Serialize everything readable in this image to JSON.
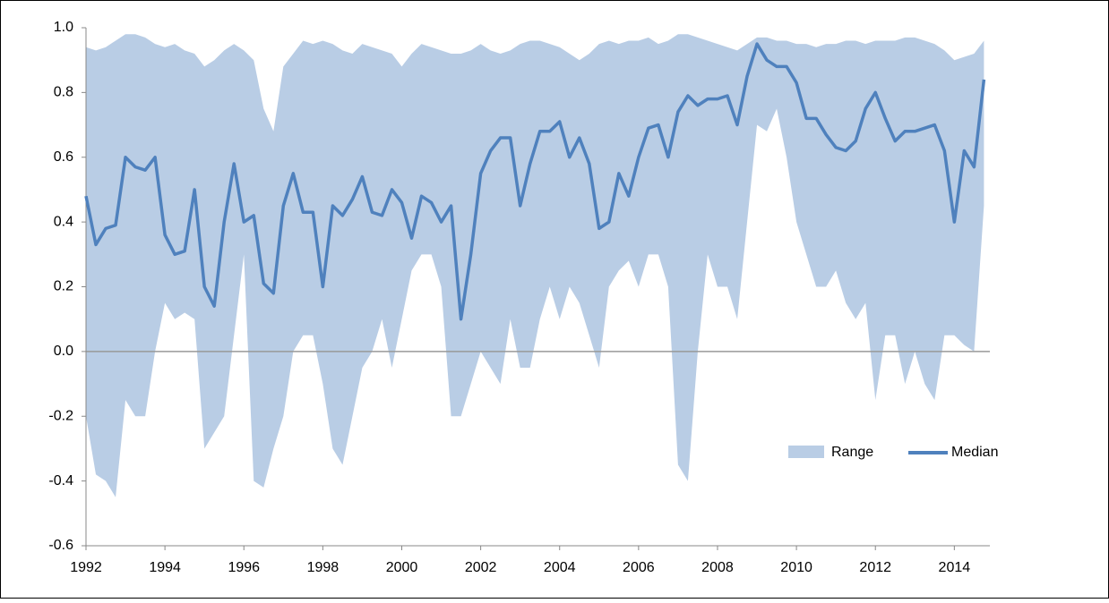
{
  "chart_data": {
    "type": "range-line",
    "x": [
      1992,
      1992.25,
      1992.5,
      1992.75,
      1993,
      1993.25,
      1993.5,
      1993.75,
      1994,
      1994.25,
      1994.5,
      1994.75,
      1995,
      1995.25,
      1995.5,
      1995.75,
      1996,
      1996.25,
      1996.5,
      1996.75,
      1997,
      1997.25,
      1997.5,
      1997.75,
      1998,
      1998.25,
      1998.5,
      1998.75,
      1999,
      1999.25,
      1999.5,
      1999.75,
      2000,
      2000.25,
      2000.5,
      2000.75,
      2001,
      2001.25,
      2001.5,
      2001.75,
      2002,
      2002.25,
      2002.5,
      2002.75,
      2003,
      2003.25,
      2003.5,
      2003.75,
      2004,
      2004.25,
      2004.5,
      2004.75,
      2005,
      2005.25,
      2005.5,
      2005.75,
      2006,
      2006.25,
      2006.5,
      2006.75,
      2007,
      2007.25,
      2007.5,
      2007.75,
      2008,
      2008.25,
      2008.5,
      2008.75,
      2009,
      2009.25,
      2009.5,
      2009.75,
      2010,
      2010.25,
      2010.5,
      2010.75,
      2011,
      2011.25,
      2011.5,
      2011.75,
      2012,
      2012.25,
      2012.5,
      2012.75,
      2013,
      2013.25,
      2013.5,
      2013.75,
      2014,
      2014.25,
      2014.5,
      2014.75
    ],
    "series": [
      {
        "name": "Range",
        "color": "#b9cde5",
        "high": [
          0.94,
          0.93,
          0.94,
          0.96,
          0.98,
          0.98,
          0.97,
          0.95,
          0.94,
          0.95,
          0.93,
          0.92,
          0.88,
          0.9,
          0.93,
          0.95,
          0.93,
          0.9,
          0.75,
          0.68,
          0.88,
          0.92,
          0.96,
          0.95,
          0.96,
          0.95,
          0.93,
          0.92,
          0.95,
          0.94,
          0.93,
          0.92,
          0.88,
          0.92,
          0.95,
          0.94,
          0.93,
          0.92,
          0.92,
          0.93,
          0.95,
          0.93,
          0.92,
          0.93,
          0.95,
          0.96,
          0.96,
          0.95,
          0.94,
          0.92,
          0.9,
          0.92,
          0.95,
          0.96,
          0.95,
          0.96,
          0.96,
          0.97,
          0.95,
          0.96,
          0.98,
          0.98,
          0.97,
          0.96,
          0.95,
          0.94,
          0.93,
          0.95,
          0.97,
          0.97,
          0.96,
          0.96,
          0.95,
          0.95,
          0.94,
          0.95,
          0.95,
          0.96,
          0.96,
          0.95,
          0.96,
          0.96,
          0.96,
          0.97,
          0.97,
          0.96,
          0.95,
          0.93,
          0.9,
          0.91,
          0.92,
          0.96
        ],
        "low": [
          -0.2,
          -0.38,
          -0.4,
          -0.45,
          -0.15,
          -0.2,
          -0.2,
          0,
          0.15,
          0.1,
          0.12,
          0.1,
          -0.3,
          -0.25,
          -0.2,
          0.05,
          0.3,
          -0.4,
          -0.42,
          -0.3,
          -0.2,
          0,
          0.05,
          0.05,
          -0.1,
          -0.3,
          -0.35,
          -0.2,
          -0.05,
          0,
          0.1,
          -0.05,
          0.1,
          0.25,
          0.3,
          0.3,
          0.2,
          -0.2,
          -0.2,
          -0.1,
          0,
          -0.05,
          -0.1,
          0.1,
          -0.05,
          -0.05,
          0.1,
          0.2,
          0.1,
          0.2,
          0.15,
          0.05,
          -0.05,
          0.2,
          0.25,
          0.28,
          0.2,
          0.3,
          0.3,
          0.2,
          -0.35,
          -0.4,
          0,
          0.3,
          0.2,
          0.2,
          0.1,
          0.4,
          0.7,
          0.68,
          0.75,
          0.6,
          0.4,
          0.3,
          0.2,
          0.2,
          0.25,
          0.15,
          0.1,
          0.15,
          -0.15,
          0.05,
          0.05,
          -0.1,
          0,
          -0.1,
          -0.15,
          0.05,
          0.05,
          0.02,
          0,
          0.45
        ]
      },
      {
        "name": "Median",
        "color": "#4f81bd",
        "values": [
          0.48,
          0.33,
          0.38,
          0.39,
          0.6,
          0.57,
          0.56,
          0.6,
          0.36,
          0.3,
          0.31,
          0.5,
          0.2,
          0.14,
          0.4,
          0.58,
          0.4,
          0.42,
          0.21,
          0.18,
          0.45,
          0.55,
          0.43,
          0.43,
          0.2,
          0.45,
          0.42,
          0.47,
          0.54,
          0.43,
          0.42,
          0.5,
          0.46,
          0.35,
          0.48,
          0.46,
          0.4,
          0.45,
          0.1,
          0.3,
          0.55,
          0.62,
          0.66,
          0.66,
          0.45,
          0.58,
          0.68,
          0.68,
          0.71,
          0.6,
          0.66,
          0.58,
          0.38,
          0.4,
          0.55,
          0.48,
          0.6,
          0.69,
          0.7,
          0.6,
          0.74,
          0.79,
          0.76,
          0.78,
          0.78,
          0.79,
          0.7,
          0.85,
          0.95,
          0.9,
          0.88,
          0.88,
          0.83,
          0.72,
          0.72,
          0.67,
          0.63,
          0.62,
          0.65,
          0.75,
          0.8,
          0.72,
          0.65,
          0.68,
          0.68,
          0.69,
          0.7,
          0.62,
          0.4,
          0.62,
          0.57,
          0.84
        ]
      }
    ],
    "xlim": [
      1992,
      2014.9
    ],
    "xticks": [
      1992,
      1994,
      1996,
      1998,
      2000,
      2002,
      2004,
      2006,
      2008,
      2010,
      2012,
      2014
    ],
    "ylim": [
      -0.6,
      1.0
    ],
    "yticks": [
      {
        "value": 1.0,
        "label": "1.0"
      },
      0.8,
      0.6,
      0.4,
      0.2,
      {
        "value": 0,
        "label": "0.0"
      },
      -0.2,
      -0.4,
      -0.6
    ]
  }
}
